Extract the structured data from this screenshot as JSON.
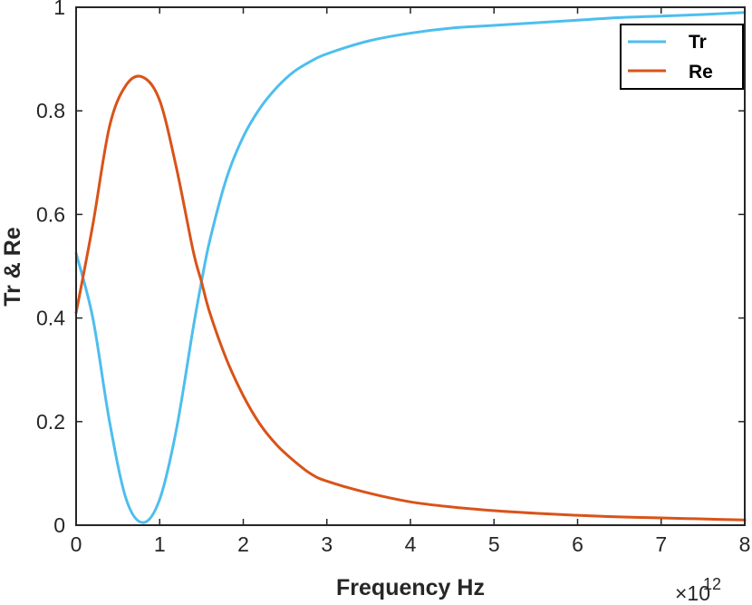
{
  "chart_data": {
    "type": "line",
    "xlabel": "Frequency Hz",
    "ylabel": "Tr & Re",
    "x_multiplier_label": "×10",
    "x_multiplier_exponent": "12",
    "xlim": [
      0,
      8
    ],
    "ylim": [
      0,
      1
    ],
    "x_ticks": [
      "0",
      "1",
      "2",
      "3",
      "4",
      "5",
      "6",
      "7",
      "8"
    ],
    "y_ticks": [
      "0",
      "0.2",
      "0.4",
      "0.6",
      "0.8",
      "1"
    ],
    "grid": false,
    "legend_position": "top-right",
    "x": [
      0,
      0.2,
      0.4,
      0.6,
      0.8,
      1.0,
      1.2,
      1.4,
      1.5,
      1.6,
      1.8,
      2.0,
      2.2,
      2.4,
      2.6,
      2.8,
      3.0,
      3.5,
      4.0,
      4.5,
      5.0,
      5.5,
      6.0,
      6.5,
      7.0,
      7.5,
      8.0
    ],
    "series": [
      {
        "name": "Tr",
        "color": "#4DBEEE",
        "values": [
          0.525,
          0.4,
          0.2,
          0.05,
          0.005,
          0.05,
          0.185,
          0.38,
          0.47,
          0.55,
          0.67,
          0.75,
          0.805,
          0.845,
          0.875,
          0.895,
          0.91,
          0.935,
          0.95,
          0.96,
          0.965,
          0.97,
          0.975,
          0.98,
          0.983,
          0.986,
          0.99
        ]
      },
      {
        "name": "Re",
        "color": "#D95319",
        "values": [
          0.41,
          0.58,
          0.77,
          0.85,
          0.865,
          0.82,
          0.69,
          0.53,
          0.47,
          0.41,
          0.32,
          0.25,
          0.195,
          0.155,
          0.125,
          0.1,
          0.085,
          0.062,
          0.045,
          0.035,
          0.028,
          0.023,
          0.019,
          0.016,
          0.014,
          0.012,
          0.01
        ]
      }
    ]
  }
}
